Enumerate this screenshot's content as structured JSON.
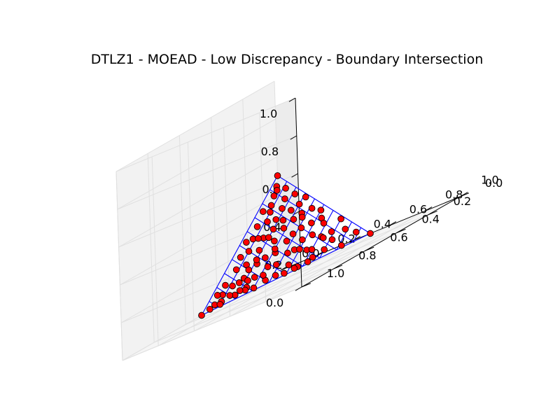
{
  "chart_data": {
    "type": "scatter3d",
    "title": "DTLZ1 - MOEAD - Low Discrepancy - Boundary Intersection",
    "x_ticks": [
      "0.0",
      "0.2",
      "0.4",
      "0.6",
      "0.8",
      "1.0"
    ],
    "y_ticks": [
      "0.0",
      "0.2",
      "0.4",
      "0.6",
      "0.8",
      "1.0"
    ],
    "z_ticks": [
      "0.0",
      "0.2",
      "0.4",
      "0.6",
      "0.8",
      "1.0"
    ],
    "xlim": [
      0,
      1
    ],
    "ylim": [
      0,
      1
    ],
    "zlim": [
      0,
      1
    ],
    "grid": true,
    "surface": {
      "description": "true Pareto front plane f1+f2+f3=0.5",
      "sum": 0.5,
      "divisions": 10,
      "color": "#0000ff"
    },
    "point_style": {
      "fill": "#ff0000",
      "stroke": "#000000"
    },
    "points": [
      [
        0.0,
        0.0,
        0.5
      ],
      [
        0.5,
        0.0,
        0.0
      ],
      [
        0.0,
        0.5,
        0.0
      ],
      [
        0.03,
        0.02,
        0.45
      ],
      [
        0.06,
        0.03,
        0.41
      ],
      [
        0.02,
        0.06,
        0.42
      ],
      [
        0.09,
        0.04,
        0.37
      ],
      [
        0.05,
        0.08,
        0.37
      ],
      [
        0.12,
        0.02,
        0.36
      ],
      [
        0.02,
        0.11,
        0.37
      ],
      [
        0.08,
        0.09,
        0.33
      ],
      [
        0.14,
        0.06,
        0.3
      ],
      [
        0.04,
        0.15,
        0.31
      ],
      [
        0.11,
        0.12,
        0.27
      ],
      [
        0.17,
        0.03,
        0.3
      ],
      [
        0.06,
        0.18,
        0.26
      ],
      [
        0.15,
        0.1,
        0.25
      ],
      [
        0.19,
        0.08,
        0.23
      ],
      [
        0.09,
        0.16,
        0.25
      ],
      [
        0.13,
        0.14,
        0.23
      ],
      [
        0.21,
        0.04,
        0.25
      ],
      [
        0.03,
        0.21,
        0.26
      ],
      [
        0.18,
        0.13,
        0.19
      ],
      [
        0.23,
        0.09,
        0.18
      ],
      [
        0.1,
        0.21,
        0.19
      ],
      [
        0.16,
        0.18,
        0.16
      ],
      [
        0.25,
        0.05,
        0.2
      ],
      [
        0.07,
        0.24,
        0.19
      ],
      [
        0.21,
        0.16,
        0.13
      ],
      [
        0.27,
        0.11,
        0.12
      ],
      [
        0.13,
        0.24,
        0.13
      ],
      [
        0.19,
        0.21,
        0.1
      ],
      [
        0.29,
        0.07,
        0.14
      ],
      [
        0.04,
        0.27,
        0.19
      ],
      [
        0.24,
        0.19,
        0.07
      ],
      [
        0.31,
        0.13,
        0.06
      ],
      [
        0.15,
        0.28,
        0.07
      ],
      [
        0.22,
        0.24,
        0.04
      ],
      [
        0.33,
        0.09,
        0.08
      ],
      [
        0.09,
        0.31,
        0.1
      ],
      [
        0.27,
        0.21,
        0.02
      ],
      [
        0.35,
        0.12,
        0.03
      ],
      [
        0.18,
        0.31,
        0.01
      ],
      [
        0.37,
        0.06,
        0.07
      ],
      [
        0.06,
        0.34,
        0.1
      ],
      [
        0.3,
        0.18,
        0.02
      ],
      [
        0.39,
        0.09,
        0.02
      ],
      [
        0.12,
        0.35,
        0.03
      ],
      [
        0.41,
        0.04,
        0.05
      ],
      [
        0.03,
        0.39,
        0.08
      ],
      [
        0.34,
        0.15,
        0.01
      ],
      [
        0.43,
        0.05,
        0.02
      ],
      [
        0.21,
        0.28,
        0.01
      ],
      [
        0.45,
        0.03,
        0.02
      ],
      [
        0.08,
        0.41,
        0.01
      ],
      [
        0.47,
        0.02,
        0.01
      ],
      [
        0.25,
        0.24,
        0.01
      ],
      [
        0.36,
        0.12,
        0.02
      ],
      [
        0.16,
        0.32,
        0.02
      ],
      [
        0.02,
        0.44,
        0.04
      ],
      [
        0.11,
        0.05,
        0.34
      ],
      [
        0.07,
        0.13,
        0.3
      ],
      [
        0.2,
        0.06,
        0.24
      ],
      [
        0.04,
        0.03,
        0.43
      ],
      [
        0.28,
        0.03,
        0.19
      ],
      [
        0.01,
        0.16,
        0.33
      ],
      [
        0.24,
        0.13,
        0.13
      ],
      [
        0.13,
        0.19,
        0.18
      ],
      [
        0.32,
        0.04,
        0.14
      ],
      [
        0.05,
        0.29,
        0.16
      ],
      [
        0.17,
        0.23,
        0.1
      ],
      [
        0.38,
        0.03,
        0.09
      ],
      [
        0.26,
        0.16,
        0.08
      ],
      [
        0.1,
        0.27,
        0.13
      ],
      [
        0.42,
        0.02,
        0.06
      ],
      [
        0.33,
        0.11,
        0.06
      ],
      [
        0.14,
        0.3,
        0.06
      ],
      [
        0.01,
        0.35,
        0.14
      ],
      [
        0.22,
        0.27,
        0.01
      ],
      [
        0.44,
        0.05,
        0.01
      ],
      [
        0.29,
        0.16,
        0.05
      ],
      [
        0.08,
        0.36,
        0.06
      ],
      [
        0.18,
        0.1,
        0.22
      ],
      [
        0.35,
        0.08,
        0.07
      ],
      [
        0.02,
        0.25,
        0.23
      ],
      [
        0.12,
        0.09,
        0.29
      ],
      [
        0.23,
        0.02,
        0.25
      ],
      [
        0.07,
        0.19,
        0.24
      ],
      [
        0.3,
        0.09,
        0.11
      ],
      [
        0.16,
        0.25,
        0.09
      ],
      [
        0.4,
        0.07,
        0.03
      ],
      [
        0.26,
        0.1,
        0.14
      ],
      [
        0.09,
        0.32,
        0.09
      ],
      [
        0.2,
        0.15,
        0.15
      ],
      [
        0.37,
        0.1,
        0.03
      ]
    ]
  }
}
